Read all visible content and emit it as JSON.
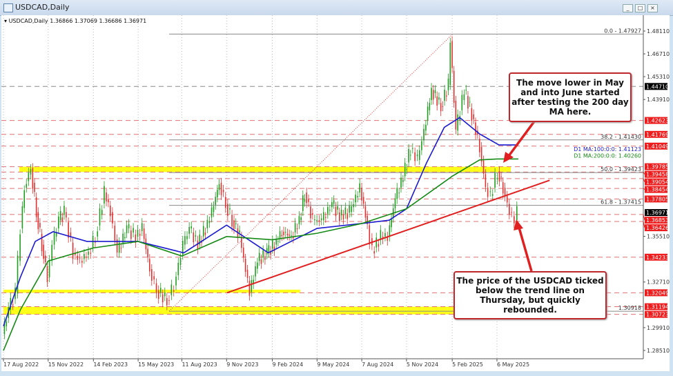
{
  "window": {
    "title": "USDCAD,Daily",
    "buttons": [
      "_",
      "□",
      "×"
    ]
  },
  "chart_info": {
    "symbol_line": "USDCAD,Daily",
    "ohlc": "1.36866 1.37069 1.36686 1.36971"
  },
  "callouts": {
    "top": "The move lower in May and into June started after testing the 200 day MA here.",
    "bottom": "The price of the USDCAD ticked below the trend line on Thursday, but quickly rebounded."
  },
  "chart_data": {
    "type": "candlestick",
    "symbol": "USDCAD",
    "timeframe": "Daily",
    "ylim": [
      1.278,
      1.488
    ],
    "y_ticks": [
      "1.48110",
      "1.46710",
      "1.45310",
      "1.43910",
      "1.35510",
      "1.32710",
      "1.29910",
      "1.28510"
    ],
    "x_ticks": [
      [
        "2022-08-17",
        "17 Aug 2022"
      ],
      [
        "2022-11-15",
        "15 Nov 2022"
      ],
      [
        "2023-02-14",
        "14 Feb 2023"
      ],
      [
        "2023-05-15",
        "15 May 2023"
      ],
      [
        "2023-08-11",
        "11 Aug 2023"
      ],
      [
        "2023-11-09",
        "9 Nov 2023"
      ],
      [
        "2024-02-09",
        "9 Feb 2024"
      ],
      [
        "2024-05-09",
        "9 May 2024"
      ],
      [
        "2024-08-07",
        "7 Aug 2024"
      ],
      [
        "2024-11-05",
        "5 Nov 2024"
      ],
      [
        "2025-02-05",
        "5 Feb 2025"
      ],
      [
        "2025-05-06",
        "6 May 2025"
      ]
    ],
    "price": [
      [
        "2022-08-17",
        1.295
      ],
      [
        "2022-08-29",
        1.31
      ],
      [
        "2022-09-12",
        1.32
      ],
      [
        "2022-09-22",
        1.36
      ],
      [
        "2022-09-30",
        1.385
      ],
      [
        "2022-10-13",
        1.397
      ],
      [
        "2022-10-24",
        1.37
      ],
      [
        "2022-11-04",
        1.35
      ],
      [
        "2022-11-15",
        1.33
      ],
      [
        "2022-11-25",
        1.35
      ],
      [
        "2022-12-08",
        1.365
      ],
      [
        "2022-12-19",
        1.37
      ],
      [
        "2023-01-06",
        1.345
      ],
      [
        "2023-01-20",
        1.34
      ],
      [
        "2023-02-06",
        1.345
      ],
      [
        "2023-02-20",
        1.355
      ],
      [
        "2023-03-10",
        1.382
      ],
      [
        "2023-03-22",
        1.37
      ],
      [
        "2023-04-05",
        1.345
      ],
      [
        "2023-04-24",
        1.36
      ],
      [
        "2023-05-12",
        1.355
      ],
      [
        "2023-05-25",
        1.36
      ],
      [
        "2023-06-09",
        1.335
      ],
      [
        "2023-06-23",
        1.322
      ],
      [
        "2023-07-14",
        1.316
      ],
      [
        "2023-07-28",
        1.325
      ],
      [
        "2023-08-15",
        1.35
      ],
      [
        "2023-08-28",
        1.36
      ],
      [
        "2023-09-14",
        1.35
      ],
      [
        "2023-09-29",
        1.36
      ],
      [
        "2023-10-12",
        1.37
      ],
      [
        "2023-10-27",
        1.388
      ],
      [
        "2023-11-09",
        1.375
      ],
      [
        "2023-11-22",
        1.365
      ],
      [
        "2023-12-07",
        1.355
      ],
      [
        "2023-12-27",
        1.321
      ],
      [
        "2024-01-12",
        1.34
      ],
      [
        "2024-01-31",
        1.345
      ],
      [
        "2024-02-15",
        1.35
      ],
      [
        "2024-03-01",
        1.358
      ],
      [
        "2024-03-20",
        1.355
      ],
      [
        "2024-04-05",
        1.365
      ],
      [
        "2024-04-16",
        1.382
      ],
      [
        "2024-05-02",
        1.365
      ],
      [
        "2024-05-20",
        1.365
      ],
      [
        "2024-06-10",
        1.375
      ],
      [
        "2024-06-25",
        1.368
      ],
      [
        "2024-07-15",
        1.37
      ],
      [
        "2024-08-05",
        1.385
      ],
      [
        "2024-08-20",
        1.362
      ],
      [
        "2024-08-30",
        1.346
      ],
      [
        "2024-09-16",
        1.355
      ],
      [
        "2024-09-30",
        1.355
      ],
      [
        "2024-10-15",
        1.378
      ],
      [
        "2024-10-31",
        1.392
      ],
      [
        "2024-11-15",
        1.409
      ],
      [
        "2024-11-29",
        1.402
      ],
      [
        "2024-12-12",
        1.42
      ],
      [
        "2024-12-27",
        1.445
      ],
      [
        "2025-01-15",
        1.435
      ],
      [
        "2025-01-30",
        1.448
      ],
      [
        "2025-02-03",
        1.475
      ],
      [
        "2025-02-14",
        1.42
      ],
      [
        "2025-03-03",
        1.445
      ],
      [
        "2025-03-18",
        1.43
      ],
      [
        "2025-04-03",
        1.41
      ],
      [
        "2025-04-15",
        1.385
      ],
      [
        "2025-04-25",
        1.38
      ],
      [
        "2025-05-09",
        1.395
      ],
      [
        "2025-05-20",
        1.385
      ],
      [
        "2025-06-02",
        1.37
      ],
      [
        "2025-06-12",
        1.365
      ],
      [
        "2025-06-18",
        1.3697
      ]
    ],
    "ma100": {
      "label": "D1 MA:100:0:0: 1.41123",
      "values": [
        [
          "2022-08-17",
          1.3
        ],
        [
          "2022-09-20",
          1.33
        ],
        [
          "2022-10-20",
          1.352
        ],
        [
          "2022-11-25",
          1.358
        ],
        [
          "2023-02-01",
          1.352
        ],
        [
          "2023-05-15",
          1.352
        ],
        [
          "2023-08-15",
          1.345
        ],
        [
          "2023-11-09",
          1.362
        ],
        [
          "2024-02-01",
          1.345
        ],
        [
          "2024-05-09",
          1.36
        ],
        [
          "2024-08-07",
          1.363
        ],
        [
          "2024-10-01",
          1.365
        ],
        [
          "2024-11-05",
          1.372
        ],
        [
          "2024-12-15",
          1.4
        ],
        [
          "2025-01-20",
          1.422
        ],
        [
          "2025-02-20",
          1.428
        ],
        [
          "2025-04-01",
          1.418
        ],
        [
          "2025-05-10",
          1.4112
        ],
        [
          "2025-06-18",
          1.4112
        ]
      ]
    },
    "ma200": {
      "label": "D1 MA:200:0:0: 1.40260",
      "values": [
        [
          "2022-08-17",
          1.285
        ],
        [
          "2022-09-20",
          1.31
        ],
        [
          "2022-11-15",
          1.34
        ],
        [
          "2023-02-14",
          1.348
        ],
        [
          "2023-05-15",
          1.352
        ],
        [
          "2023-08-11",
          1.343
        ],
        [
          "2023-11-09",
          1.355
        ],
        [
          "2024-02-09",
          1.353
        ],
        [
          "2024-05-09",
          1.357
        ],
        [
          "2024-08-07",
          1.363
        ],
        [
          "2024-11-05",
          1.372
        ],
        [
          "2025-02-05",
          1.392
        ],
        [
          "2025-04-01",
          1.402
        ],
        [
          "2025-05-06",
          1.4026
        ],
        [
          "2025-06-18",
          1.4026
        ]
      ]
    },
    "fib_levels": [
      {
        "label": "0.0 - 1.47927",
        "value": 1.47927
      },
      {
        "label": "38.2 - 1.41430",
        "value": 1.4143
      },
      {
        "label": "50.0 - 1.39423",
        "value": 1.39423
      },
      {
        "label": "61.8 - 1.37415",
        "value": 1.37415
      },
      {
        "label": "1.30918",
        "value": 1.30918
      }
    ],
    "level_tags": [
      "1.44710",
      "1.42623",
      "1.41769",
      "1.41049",
      "1.39785",
      "1.39458",
      "1.39054",
      "1.38454",
      "1.37805",
      "1.36971",
      "1.36853",
      "1.36426",
      "1.34233",
      "1.32049",
      "1.31194",
      "1.30723"
    ],
    "current_price": "1.36971",
    "support_zones": [
      [
        1.39458,
        1.39785
      ],
      [
        1.32049,
        1.3224
      ],
      [
        1.30723,
        1.31194
      ]
    ],
    "trendline": [
      [
        "2023-11-10",
        1.3205
      ],
      [
        "2025-08-20",
        1.3895
      ]
    ],
    "colors": {
      "ma100": "#1a1ad0",
      "ma200": "#148a14",
      "up": "#1e9e1e",
      "down": "#e03030",
      "levels": "#e07070",
      "zone": "#ffff00",
      "trendline": "#e02020"
    }
  }
}
